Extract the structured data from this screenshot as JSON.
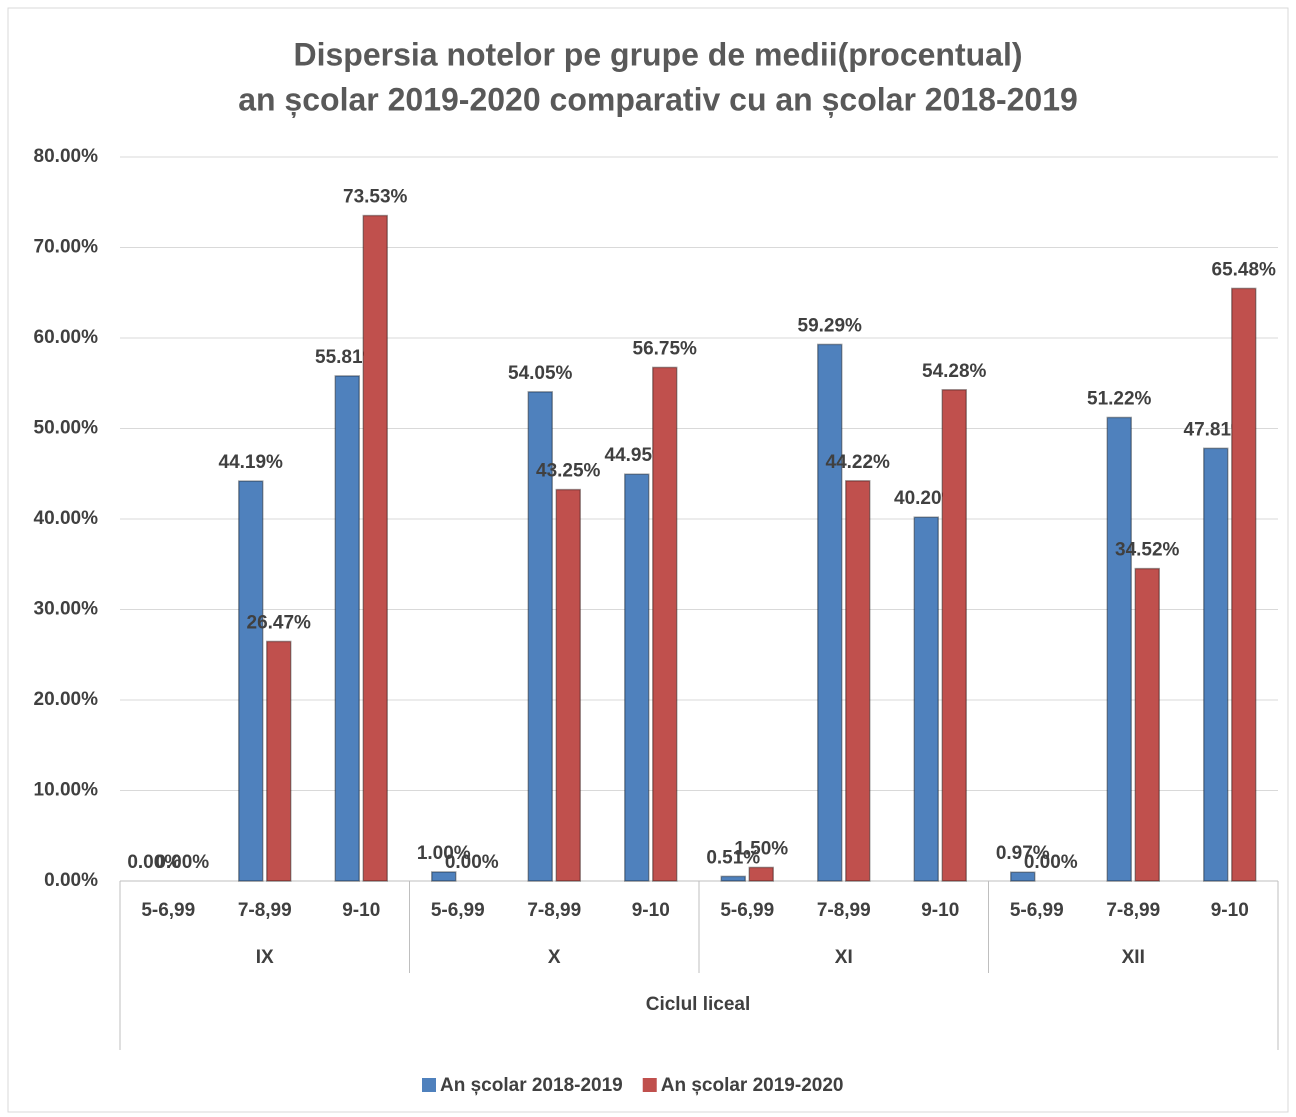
{
  "chart_data": {
    "type": "bar",
    "title": [
      "Dispersia notelor pe grupe de medii(procentual)",
      "an școlar 2019-2020 comparativ cu an școlar 2018-2019"
    ],
    "categories": [
      "5-6,99",
      "7-8,99",
      "9-10",
      "5-6,99",
      "7-8,99",
      "9-10",
      "5-6,99",
      "7-8,99",
      "9-10",
      "5-6,99",
      "7-8,99",
      "9-10"
    ],
    "groups": [
      "IX",
      "X",
      "XI",
      "XII"
    ],
    "top_group": "Ciclul liceal",
    "series": [
      {
        "name": "An școlar 2018-2019",
        "color": "#4f81bd",
        "values": [
          0,
          44.19,
          55.81,
          1.0,
          54.05,
          44.95,
          0.51,
          59.29,
          40.2,
          0.97,
          51.22,
          47.81
        ],
        "value_labels": [
          "0.00%",
          "44.19%",
          "55.81%",
          "1.00%",
          "54.05%",
          "44.95%",
          "0.51%",
          "59.29%",
          "40.20%",
          "0.97%",
          "51.22%",
          "47.81%"
        ]
      },
      {
        "name": "An școlar 2019-2020",
        "color": "#c0504d",
        "values": [
          0,
          26.47,
          73.53,
          0,
          43.25,
          56.75,
          1.5,
          44.22,
          54.28,
          0,
          34.52,
          65.48
        ],
        "value_labels": [
          "0.00%",
          "26.47%",
          "73.53%",
          "0.00%",
          "43.25%",
          "56.75%",
          "1.50%",
          "44.22%",
          "54.28%",
          "0.00%",
          "34.52%",
          "65.48%"
        ]
      }
    ],
    "ylim": [
      0,
      80
    ],
    "yticks": [
      {
        "value": 0,
        "label": "0.00%"
      },
      {
        "value": 10,
        "label": "10.00%"
      },
      {
        "value": 20,
        "label": "20.00%"
      },
      {
        "value": 30,
        "label": "30.00%"
      },
      {
        "value": 40,
        "label": "40.00%"
      },
      {
        "value": 50,
        "label": "50.00%"
      },
      {
        "value": 60,
        "label": "60.00%"
      },
      {
        "value": 70,
        "label": "70.00%"
      },
      {
        "value": 80,
        "label": "80.00%"
      }
    ],
    "grid": true,
    "legend": "bottom"
  }
}
